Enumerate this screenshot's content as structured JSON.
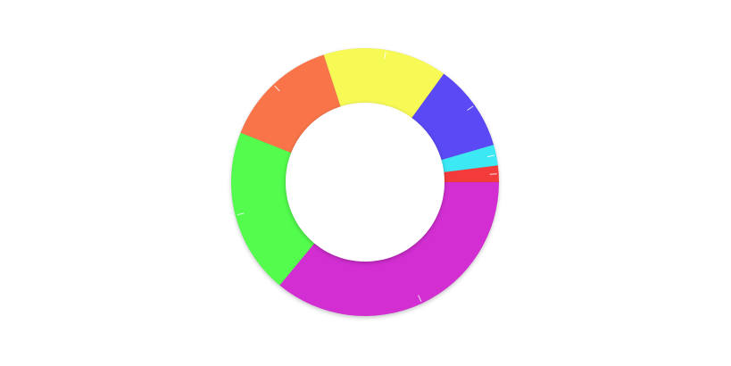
{
  "chart_data": {
    "type": "pie",
    "variant": "donut",
    "title": "",
    "legend": "none",
    "slices": [
      {
        "value": 2.0,
        "color": "#f43a3a"
      },
      {
        "value": 2.5,
        "color": "#3ae8f4"
      },
      {
        "value": 10.5,
        "color": "#5a48f4"
      },
      {
        "value": 15.0,
        "color": "#f7fa55"
      },
      {
        "value": 14.0,
        "color": "#f97449"
      },
      {
        "value": 20.0,
        "color": "#52fc4e"
      },
      {
        "value": 36.0,
        "color": "#d22fd2"
      }
    ]
  }
}
